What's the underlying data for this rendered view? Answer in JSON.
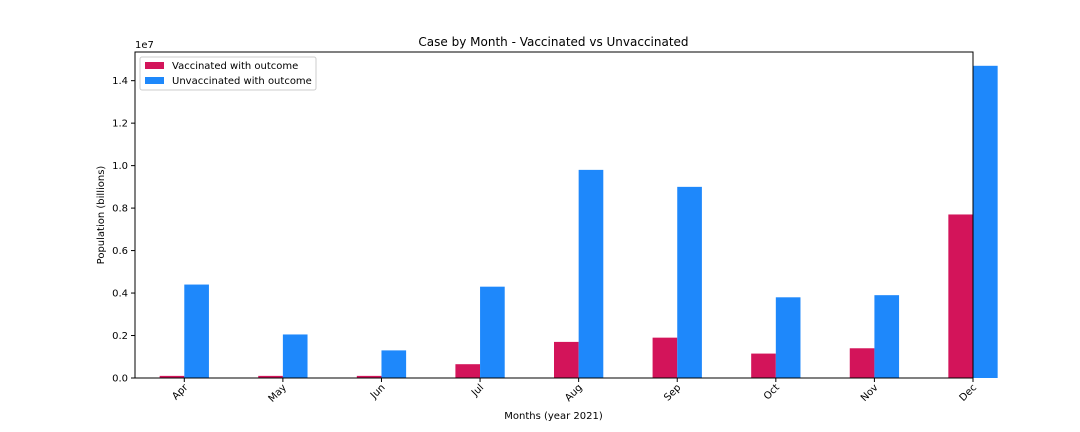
{
  "chart_data": {
    "type": "bar",
    "title": "Case by Month - Vaccinated vs Unvaccinated",
    "xlabel": "Months (year 2021)",
    "ylabel": "Population (billions)",
    "y_offset_text": "1e7",
    "categories": [
      "Apr",
      "May",
      "Jun",
      "Jul",
      "Aug",
      "Sep",
      "Oct",
      "Nov",
      "Dec"
    ],
    "series": [
      {
        "name": "Vaccinated with outcome",
        "color": "#d3145a",
        "values": [
          0.01,
          0.01,
          0.01,
          0.065,
          0.17,
          0.19,
          0.115,
          0.14,
          0.77
        ]
      },
      {
        "name": "Unvaccinated with outcome",
        "color": "#1e88fb",
        "values": [
          0.44,
          0.205,
          0.13,
          0.43,
          0.98,
          0.9,
          0.38,
          0.39,
          1.47
        ]
      }
    ],
    "ylim": [
      0,
      1.535
    ],
    "yticks": [
      "0.0",
      "0.2",
      "0.4",
      "0.6",
      "0.8",
      "1.0",
      "1.2",
      "1.4"
    ],
    "legend_position": "upper-left",
    "grid": false
  }
}
